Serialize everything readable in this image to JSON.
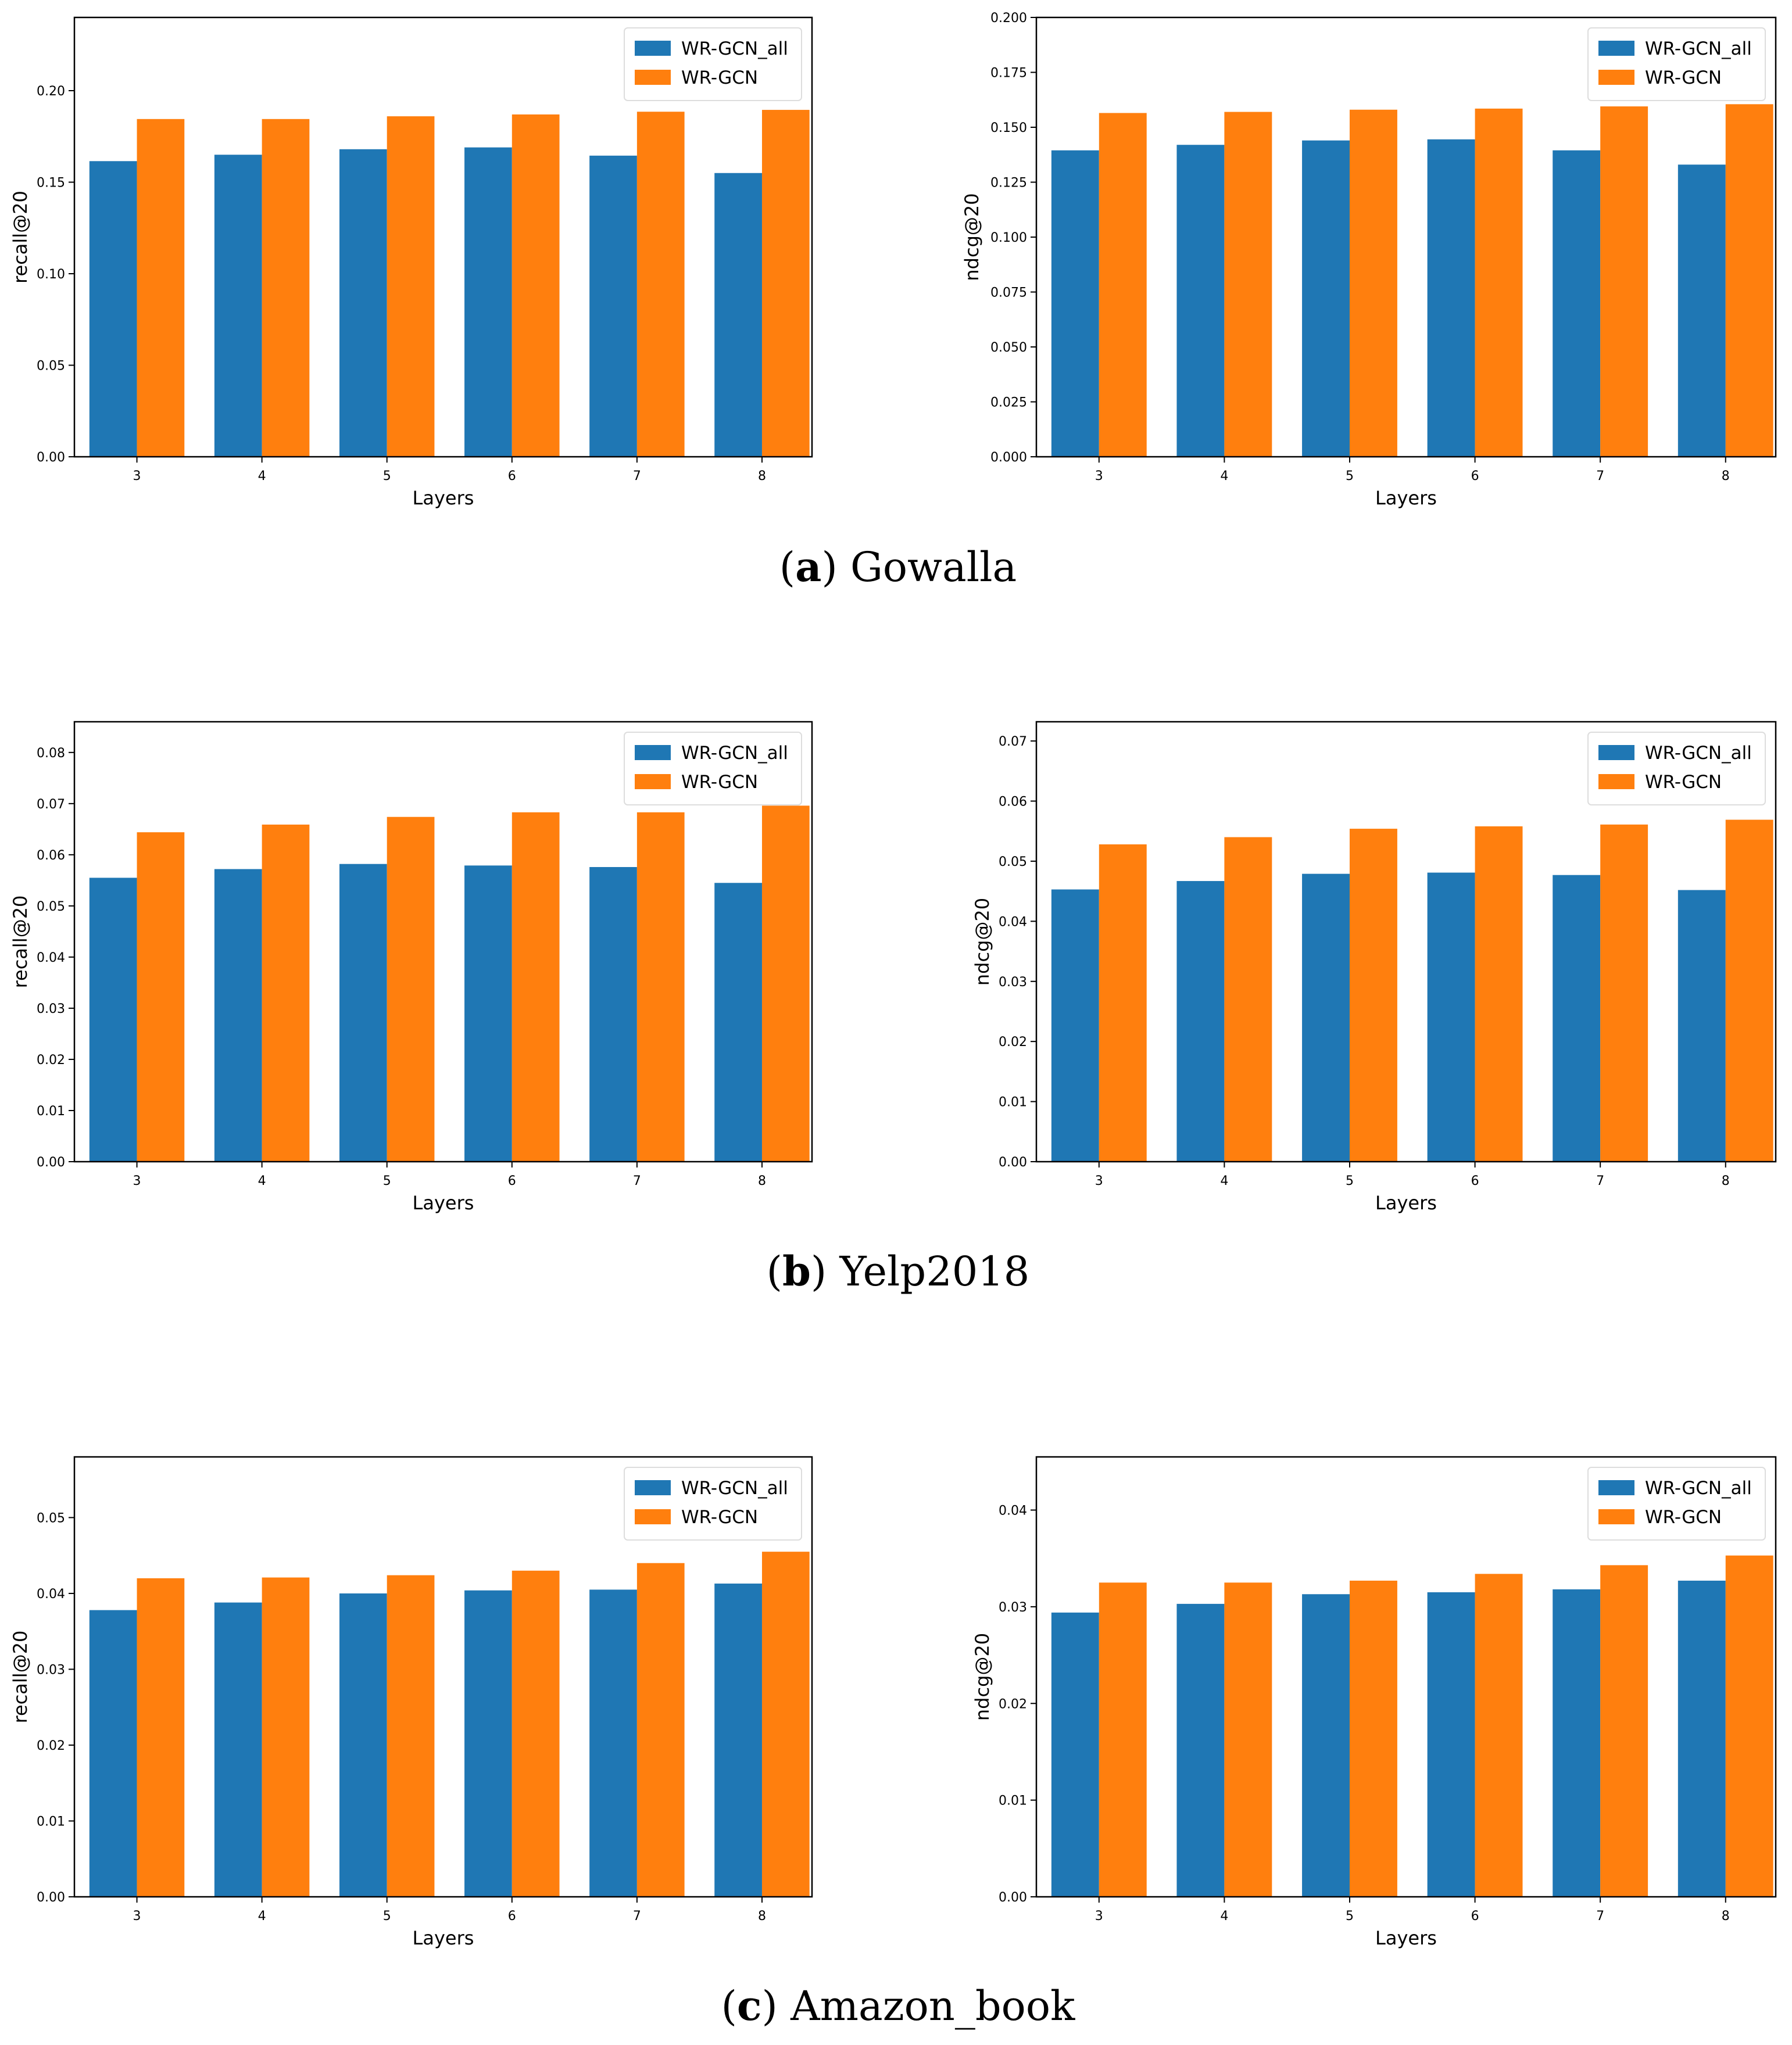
{
  "colors": {
    "series1": "#1f77b4",
    "series2": "#ff7f0e",
    "axis": "#000000"
  },
  "captions": [
    {
      "letter": "a",
      "name": "Gowalla"
    },
    {
      "letter": "b",
      "name": "Yelp2018"
    },
    {
      "letter": "c",
      "name": "Amazon_book"
    }
  ],
  "chart_data": [
    {
      "id": "gowalla-recall",
      "type": "bar",
      "xlabel": "Layers",
      "ylabel": "recall@20",
      "categories": [
        "3",
        "4",
        "5",
        "6",
        "7",
        "8"
      ],
      "ylim": [
        0,
        0.24
      ],
      "yticks": [
        0.0,
        0.05,
        0.1,
        0.15,
        0.2
      ],
      "tick_decimals": 2,
      "legend": "top-right",
      "series": [
        {
          "name": "WR-GCN_all",
          "values": [
            0.1615,
            0.165,
            0.168,
            0.169,
            0.1645,
            0.155
          ]
        },
        {
          "name": "WR-GCN",
          "values": [
            0.1845,
            0.1845,
            0.186,
            0.187,
            0.1885,
            0.1895
          ]
        }
      ]
    },
    {
      "id": "gowalla-ndcg",
      "type": "bar",
      "xlabel": "Layers",
      "ylabel": "ndcg@20",
      "categories": [
        "3",
        "4",
        "5",
        "6",
        "7",
        "8"
      ],
      "ylim": [
        0,
        0.2
      ],
      "yticks": [
        0.0,
        0.025,
        0.05,
        0.075,
        0.1,
        0.125,
        0.15,
        0.175,
        0.2
      ],
      "tick_decimals": 3,
      "legend": "top-right",
      "series": [
        {
          "name": "WR-GCN_all",
          "values": [
            0.1395,
            0.142,
            0.144,
            0.1445,
            0.1395,
            0.133
          ]
        },
        {
          "name": "WR-GCN",
          "values": [
            0.1565,
            0.157,
            0.158,
            0.1585,
            0.1595,
            0.1605
          ]
        }
      ]
    },
    {
      "id": "yelp-recall",
      "type": "bar",
      "xlabel": "Layers",
      "ylabel": "recall@20",
      "categories": [
        "3",
        "4",
        "5",
        "6",
        "7",
        "8"
      ],
      "ylim": [
        0,
        0.086
      ],
      "yticks": [
        0.0,
        0.01,
        0.02,
        0.03,
        0.04,
        0.05,
        0.06,
        0.07,
        0.08
      ],
      "tick_decimals": 2,
      "legend": "top-right",
      "series": [
        {
          "name": "WR-GCN_all",
          "values": [
            0.0555,
            0.0572,
            0.0582,
            0.0579,
            0.0576,
            0.0545
          ]
        },
        {
          "name": "WR-GCN",
          "values": [
            0.0644,
            0.0659,
            0.0674,
            0.0683,
            0.0683,
            0.0696
          ]
        }
      ]
    },
    {
      "id": "yelp-ndcg",
      "type": "bar",
      "xlabel": "Layers",
      "ylabel": "ndcg@20",
      "categories": [
        "3",
        "4",
        "5",
        "6",
        "7",
        "8"
      ],
      "ylim": [
        0,
        0.0732
      ],
      "yticks": [
        0.0,
        0.01,
        0.02,
        0.03,
        0.04,
        0.05,
        0.06,
        0.07
      ],
      "tick_decimals": 2,
      "legend": "top-right",
      "series": [
        {
          "name": "WR-GCN_all",
          "values": [
            0.0453,
            0.0467,
            0.0479,
            0.0481,
            0.0477,
            0.0452
          ]
        },
        {
          "name": "WR-GCN",
          "values": [
            0.0528,
            0.054,
            0.0554,
            0.0558,
            0.0561,
            0.0569
          ]
        }
      ]
    },
    {
      "id": "amazon-recall",
      "type": "bar",
      "xlabel": "Layers",
      "ylabel": "recall@20",
      "categories": [
        "3",
        "4",
        "5",
        "6",
        "7",
        "8"
      ],
      "ylim": [
        0,
        0.058
      ],
      "yticks": [
        0.0,
        0.01,
        0.02,
        0.03,
        0.04,
        0.05
      ],
      "tick_decimals": 2,
      "legend": "top-right",
      "series": [
        {
          "name": "WR-GCN_all",
          "values": [
            0.0378,
            0.0388,
            0.04,
            0.0404,
            0.0405,
            0.0413
          ]
        },
        {
          "name": "WR-GCN",
          "values": [
            0.042,
            0.0421,
            0.0424,
            0.043,
            0.044,
            0.0455
          ]
        }
      ]
    },
    {
      "id": "amazon-ndcg",
      "type": "bar",
      "xlabel": "Layers",
      "ylabel": "ndcg@20",
      "categories": [
        "3",
        "4",
        "5",
        "6",
        "7",
        "8"
      ],
      "ylim": [
        0,
        0.0455
      ],
      "yticks": [
        0.0,
        0.01,
        0.02,
        0.03,
        0.04
      ],
      "tick_decimals": 2,
      "legend": "top-right",
      "series": [
        {
          "name": "WR-GCN_all",
          "values": [
            0.0294,
            0.0303,
            0.0313,
            0.0315,
            0.0318,
            0.0327
          ]
        },
        {
          "name": "WR-GCN",
          "values": [
            0.0325,
            0.0325,
            0.0327,
            0.0334,
            0.0343,
            0.0353
          ]
        }
      ]
    }
  ]
}
